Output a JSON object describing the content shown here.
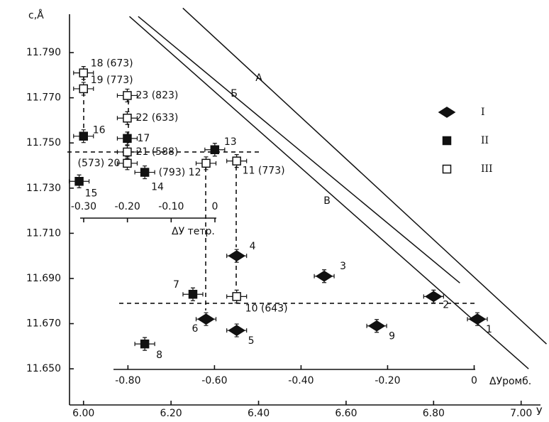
{
  "chart_data": {
    "type": "scatter",
    "y_label": "c,Å",
    "x_label": "У",
    "xlim": [
      5.968,
      7.041
    ],
    "ylim": [
      11.634,
      11.807
    ],
    "xticks": [
      {
        "value": 6.0,
        "label": "6.00"
      },
      {
        "value": 6.2,
        "label": "6.20"
      },
      {
        "value": 6.4,
        "label": "6.40"
      },
      {
        "value": 6.6,
        "label": "6.60"
      },
      {
        "value": 6.8,
        "label": "6.80"
      },
      {
        "value": 7.0,
        "label": "7.00"
      }
    ],
    "yticks": [
      {
        "value": 11.65,
        "label": "11.650"
      },
      {
        "value": 11.67,
        "label": "11.670"
      },
      {
        "value": 11.69,
        "label": "11.690"
      },
      {
        "value": 11.71,
        "label": "11.710"
      },
      {
        "value": 11.73,
        "label": "11.730"
      },
      {
        "value": 11.75,
        "label": "11.750"
      },
      {
        "value": 11.77,
        "label": "11.770"
      },
      {
        "value": 11.79,
        "label": "11.790"
      }
    ],
    "tetr_axis": {
      "label": "ΔУ тетр.",
      "xlim": [
        -0.3324,
        0.741
      ],
      "ticks": [
        {
          "value": -0.3,
          "label": "-0.30"
        },
        {
          "value": -0.2,
          "label": "-0.20"
        },
        {
          "value": -0.1,
          "label": "-0.10"
        },
        0
      ]
    },
    "rhomb_axis": {
      "label": "ΔУромб.",
      "xlim": [
        -0.935,
        0.15
      ],
      "ticks": [
        {
          "value": -0.8,
          "label": "-0.80"
        },
        {
          "value": -0.6,
          "label": "-0.60"
        },
        {
          "value": -0.4,
          "label": "-0.40"
        },
        {
          "value": -0.2,
          "label": "-0.20"
        },
        0
      ]
    },
    "reference_lines": [
      11.746,
      11.679
    ],
    "legend": "right",
    "series": [
      {
        "name": "I",
        "marker": "diamond",
        "color": "#111111",
        "filled": true,
        "x": [
          6.9,
          6.8,
          6.55,
          6.35,
          6.35,
          6.28,
          6.67
        ],
        "values": [
          11.672,
          11.682,
          11.691,
          11.7,
          11.667,
          11.672,
          11.669
        ],
        "labels": [
          "1",
          "2",
          "3",
          "4",
          "5",
          "6",
          "9"
        ]
      },
      {
        "name": "II",
        "marker": "square",
        "color": "#111111",
        "filled": true,
        "x": [
          6.25,
          6.14,
          6.0,
          6.1,
          6.3,
          6.14,
          5.99
        ],
        "values": [
          11.683,
          11.661,
          11.753,
          11.752,
          11.747,
          11.737,
          11.733
        ],
        "labels": [
          "7",
          "8",
          "16",
          "17",
          "13",
          "14",
          "15"
        ]
      },
      {
        "name": "III",
        "marker": "square",
        "color": "#111111",
        "filled": false,
        "x": [
          6.35,
          6.0,
          6.0,
          6.1,
          6.1,
          6.1,
          6.1,
          6.28,
          6.35
        ],
        "values": [
          11.682,
          11.781,
          11.774,
          11.771,
          11.761,
          11.746,
          11.741,
          11.741,
          11.742
        ],
        "labels": [
          "10 (643)",
          "18 (673)",
          "19 (773)",
          "23 (823)",
          "22 (633)",
          "21 (588)",
          "(573) 20",
          "(793) 12",
          "11 (773)"
        ]
      }
    ],
    "lines": [
      {
        "name": "А",
        "x": [
          6.227,
          7.058
        ],
        "values": [
          11.8097,
          11.661
        ]
      },
      {
        "name": "Б",
        "x": [
          6.125,
          6.86
        ],
        "values": [
          11.806,
          11.688
        ]
      },
      {
        "name": "В",
        "x": [
          6.105,
          7.017
        ],
        "values": [
          11.806,
          11.65
        ]
      }
    ]
  }
}
